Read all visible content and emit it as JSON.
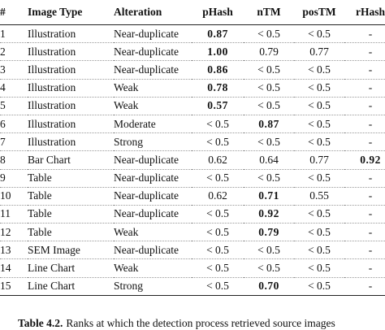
{
  "table": {
    "header": [
      "#",
      "Image Type",
      "Alteration",
      "pHash",
      "nTM",
      "posTM",
      "rHash"
    ],
    "rows": [
      [
        "1",
        "Illustration",
        "Near-duplicate",
        "0.87",
        "< 0.5",
        "< 0.5",
        "-"
      ],
      [
        "2",
        "Illustration",
        "Near-duplicate",
        "1.00",
        "0.79",
        "0.77",
        "-"
      ],
      [
        "3",
        "Illustration",
        "Near-duplicate",
        "0.86",
        "< 0.5",
        "< 0.5",
        "-"
      ],
      [
        "4",
        "Illustration",
        "Weak",
        "0.78",
        "< 0.5",
        "< 0.5",
        "-"
      ],
      [
        "5",
        "Illustration",
        "Weak",
        "0.57",
        "< 0.5",
        "< 0.5",
        "-"
      ],
      [
        "6",
        "Illustration",
        "Moderate",
        "< 0.5",
        "0.87",
        "< 0.5",
        "-"
      ],
      [
        "7",
        "Illustration",
        "Strong",
        "< 0.5",
        "< 0.5",
        "< 0.5",
        "-"
      ],
      [
        "8",
        "Bar Chart",
        "Near-duplicate",
        "0.62",
        "0.64",
        "0.77",
        "0.92"
      ],
      [
        "9",
        "Table",
        "Near-duplicate",
        "< 0.5",
        "< 0.5",
        "< 0.5",
        "-"
      ],
      [
        "10",
        "Table",
        "Near-duplicate",
        "0.62",
        "0.71",
        "0.55",
        "-"
      ],
      [
        "11",
        "Table",
        "Near-duplicate",
        "< 0.5",
        "0.92",
        "< 0.5",
        "-"
      ],
      [
        "12",
        "Table",
        "Weak",
        "< 0.5",
        "0.79",
        "< 0.5",
        "-"
      ],
      [
        "13",
        "SEM Image",
        "Near-duplicate",
        "< 0.5",
        "< 0.5",
        "< 0.5",
        "-"
      ],
      [
        "14",
        "Line Chart",
        "Weak",
        "< 0.5",
        "< 0.5",
        "< 0.5",
        "-"
      ],
      [
        "15",
        "Line Chart",
        "Strong",
        "< 0.5",
        "0.70",
        "< 0.5",
        "-"
      ]
    ],
    "bold": [
      [
        0,
        3
      ],
      [
        1,
        3
      ],
      [
        2,
        3
      ],
      [
        3,
        3
      ],
      [
        4,
        3
      ],
      [
        5,
        4
      ],
      [
        7,
        6
      ],
      [
        9,
        4
      ],
      [
        10,
        4
      ],
      [
        11,
        4
      ],
      [
        14,
        4
      ]
    ]
  },
  "caption": {
    "label": "Table 4.2.",
    "text": "Ranks at which the detection process retrieved source images"
  }
}
